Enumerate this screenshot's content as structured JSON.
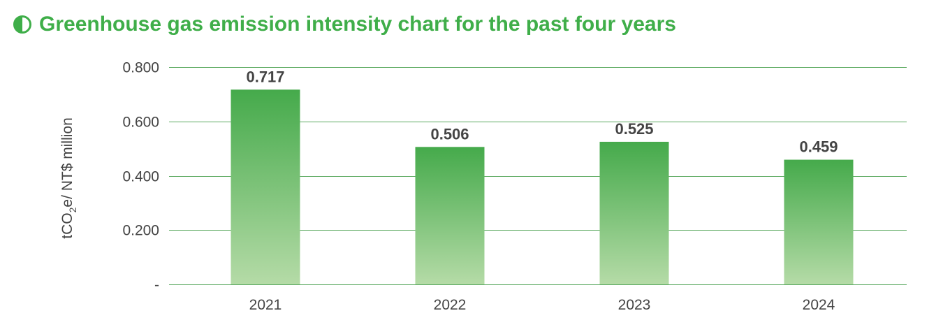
{
  "header": {
    "title": "Greenhouse gas emission intensity chart for the past four years",
    "icon": "half-circle-icon"
  },
  "colors": {
    "accent": "#3fae49",
    "bar_top": "#45aa4b",
    "bar_bottom": "#b5dba7",
    "grid": "#5aa95f",
    "text": "#444444"
  },
  "chart_data": {
    "type": "bar",
    "categories": [
      "2021",
      "2022",
      "2023",
      "2024"
    ],
    "values": [
      0.717,
      0.506,
      0.525,
      0.459
    ],
    "value_labels": [
      "0.717",
      "0.506",
      "0.525",
      "0.459"
    ],
    "title": "Greenhouse gas emission intensity chart for the past four years",
    "xlabel": "",
    "ylabel_parts": [
      "tCO",
      "2",
      "e/ NT$ million"
    ],
    "ylim": [
      0,
      0.8
    ],
    "y_ticks": [
      0,
      0.2,
      0.4,
      0.6,
      0.8
    ],
    "y_tick_labels": [
      "-",
      "0.200",
      "0.400",
      "0.600",
      "0.800"
    ],
    "grid": true
  }
}
